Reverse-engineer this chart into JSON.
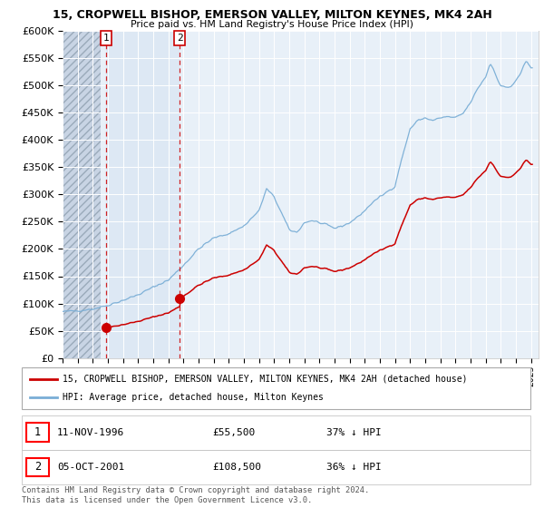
{
  "title": "15, CROPWELL BISHOP, EMERSON VALLEY, MILTON KEYNES, MK4 2AH",
  "subtitle": "Price paid vs. HM Land Registry's House Price Index (HPI)",
  "sale1_label": "11-NOV-1996",
  "sale1_price": 55500,
  "sale1_hpi_pct": "37% ↓ HPI",
  "sale2_label": "05-OCT-2001",
  "sale2_price": 108500,
  "sale2_hpi_pct": "36% ↓ HPI",
  "legend_line1": "15, CROPWELL BISHOP, EMERSON VALLEY, MILTON KEYNES, MK4 2AH (detached house)",
  "legend_line2": "HPI: Average price, detached house, Milton Keynes",
  "footnote": "Contains HM Land Registry data © Crown copyright and database right 2024.\nThis data is licensed under the Open Government Licence v3.0.",
  "xlim_start": 1994.0,
  "xlim_end": 2025.5,
  "ylim_min": 0,
  "ylim_max": 600000,
  "sale1_year": 1996.877,
  "sale2_year": 2001.752,
  "hatch_end": 1996.5,
  "sale_color": "#cc0000",
  "hpi_color": "#7aaed6",
  "bg_plot": "#e8f0f8",
  "bg_hatch_color": "#c8d4e4",
  "bg_between_sales": "#dce8f4"
}
